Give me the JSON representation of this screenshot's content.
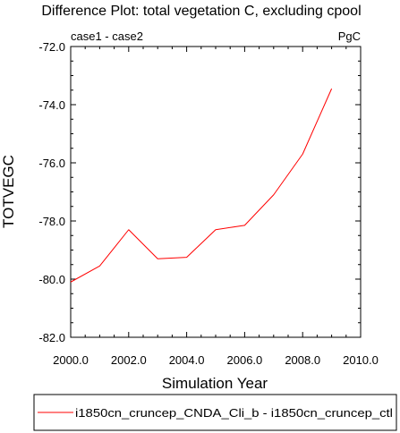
{
  "chart_data": {
    "type": "line",
    "title": "Difference Plot: total vegetation C, excluding cpool",
    "left_label": "case1 - case2",
    "units_label": "PgC",
    "xlabel": "Simulation Year",
    "ylabel": "TOTVEGC",
    "xlim": [
      2000.0,
      2010.0
    ],
    "ylim": [
      -82.0,
      -72.0
    ],
    "x_ticks": [
      {
        "value": 2000,
        "label": "2000.0"
      },
      {
        "value": 2002,
        "label": "2002.0"
      },
      {
        "value": 2004,
        "label": "2004.0"
      },
      {
        "value": 2006,
        "label": "2006.0"
      },
      {
        "value": 2008,
        "label": "2008.0"
      },
      {
        "value": 2010,
        "label": "2010.0"
      }
    ],
    "y_ticks": [
      {
        "value": -72,
        "label": "-72.0"
      },
      {
        "value": -74,
        "label": "-74.0"
      },
      {
        "value": -76,
        "label": "-76.0"
      },
      {
        "value": -78,
        "label": "-78.0"
      },
      {
        "value": -80,
        "label": "-80.0"
      },
      {
        "value": -82,
        "label": "-82.0"
      }
    ],
    "grid": false,
    "legend_position": "bottom",
    "series": [
      {
        "name": "i1850cn_cruncep_CNDA_Cli_b - i1850cn_cruncep_ctl",
        "color": "#ff0000",
        "x": [
          2000,
          2001,
          2002,
          2003,
          2004,
          2005,
          2006,
          2007,
          2008,
          2009
        ],
        "y": [
          -80.1,
          -79.55,
          -78.3,
          -79.3,
          -79.25,
          -78.3,
          -78.15,
          -77.1,
          -75.7,
          -73.45
        ]
      }
    ]
  }
}
